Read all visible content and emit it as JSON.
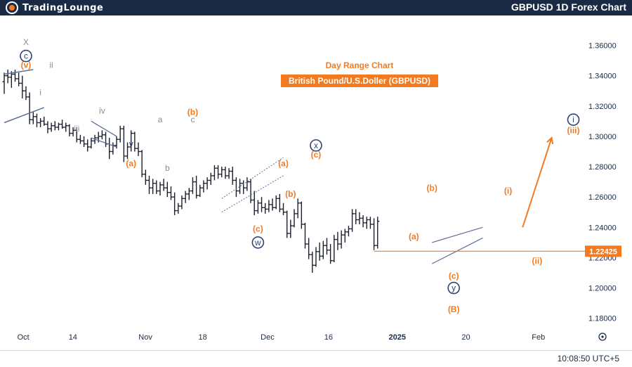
{
  "header": {
    "logo_text": "TradingLounge",
    "chart_title": "GBPUSD 1D Forex Chart"
  },
  "footer": {
    "time": "10:08:50 UTC+5"
  },
  "colors": {
    "bar": "#1b1f2b",
    "orange": "#f47a20",
    "gray": "#8c8c8c",
    "navy": "#2e4372",
    "axis_text": "#1b2a44",
    "price_tag": "#f47a20"
  },
  "chart_data": {
    "type": "ohlc",
    "title": "Day Range Chart",
    "subtitle": "British Pound/U.S.Doller (GBPUSD)",
    "ylim": [
      1.172,
      1.376
    ],
    "y_ticks": [
      "1.36000",
      "1.34000",
      "1.32000",
      "1.30000",
      "1.28000",
      "1.26000",
      "1.24000",
      "1.22000",
      "1.20000",
      "1.18000"
    ],
    "y_tick_values": [
      1.36,
      1.34,
      1.32,
      1.3,
      1.28,
      1.26,
      1.24,
      1.22,
      1.2,
      1.18
    ],
    "x_ticks": [
      "Oct",
      "14",
      "Nov",
      "18",
      "Dec",
      "16",
      "2025",
      "20",
      "Feb"
    ],
    "x_tick_days": [
      5,
      18,
      37,
      52,
      69,
      85,
      103,
      121,
      140
    ],
    "last_price": "1.22425",
    "last_price_value": 1.22425,
    "bars": [
      [
        0,
        1.336,
        1.342,
        1.328,
        1.34
      ],
      [
        1,
        1.34,
        1.344,
        1.335,
        1.339
      ],
      [
        2,
        1.339,
        1.343,
        1.332,
        1.341
      ],
      [
        3,
        1.341,
        1.344,
        1.336,
        1.338
      ],
      [
        4,
        1.338,
        1.342,
        1.333,
        1.335
      ],
      [
        5,
        1.335,
        1.34,
        1.325,
        1.33
      ],
      [
        6,
        1.33,
        1.333,
        1.324,
        1.326
      ],
      [
        7,
        1.326,
        1.329,
        1.308,
        1.311
      ],
      [
        8,
        1.311,
        1.316,
        1.308,
        1.313
      ],
      [
        9,
        1.313,
        1.315,
        1.306,
        1.309
      ],
      [
        10,
        1.309,
        1.312,
        1.306,
        1.31
      ],
      [
        11,
        1.31,
        1.313,
        1.307,
        1.308
      ],
      [
        12,
        1.308,
        1.31,
        1.302,
        1.305
      ],
      [
        13,
        1.305,
        1.309,
        1.303,
        1.307
      ],
      [
        14,
        1.307,
        1.31,
        1.304,
        1.306
      ],
      [
        15,
        1.306,
        1.309,
        1.304,
        1.308
      ],
      [
        16,
        1.308,
        1.311,
        1.305,
        1.306
      ],
      [
        17,
        1.306,
        1.309,
        1.303,
        1.307
      ],
      [
        18,
        1.307,
        1.308,
        1.3,
        1.302
      ],
      [
        19,
        1.302,
        1.306,
        1.3,
        1.304
      ],
      [
        20,
        1.304,
        1.306,
        1.296,
        1.298
      ],
      [
        21,
        1.298,
        1.301,
        1.295,
        1.297
      ],
      [
        22,
        1.297,
        1.3,
        1.293,
        1.295
      ],
      [
        23,
        1.295,
        1.298,
        1.29,
        1.293
      ],
      [
        24,
        1.293,
        1.299,
        1.292,
        1.297
      ],
      [
        25,
        1.297,
        1.301,
        1.295,
        1.299
      ],
      [
        26,
        1.299,
        1.303,
        1.296,
        1.3
      ],
      [
        27,
        1.3,
        1.304,
        1.298,
        1.301
      ],
      [
        28,
        1.301,
        1.303,
        1.293,
        1.295
      ],
      [
        29,
        1.295,
        1.299,
        1.285,
        1.29
      ],
      [
        30,
        1.29,
        1.296,
        1.288,
        1.294
      ],
      [
        31,
        1.294,
        1.3,
        1.292,
        1.298
      ],
      [
        32,
        1.298,
        1.307,
        1.296,
        1.305
      ],
      [
        33,
        1.305,
        1.307,
        1.283,
        1.287
      ],
      [
        34,
        1.287,
        1.296,
        1.285,
        1.293
      ],
      [
        35,
        1.293,
        1.304,
        1.29,
        1.302
      ],
      [
        36,
        1.302,
        1.303,
        1.29,
        1.292
      ],
      [
        37,
        1.292,
        1.296,
        1.287,
        1.29
      ],
      [
        38,
        1.29,
        1.291,
        1.273,
        1.275
      ],
      [
        39,
        1.275,
        1.278,
        1.268,
        1.271
      ],
      [
        40,
        1.271,
        1.274,
        1.262,
        1.266
      ],
      [
        41,
        1.266,
        1.272,
        1.262,
        1.269
      ],
      [
        42,
        1.269,
        1.271,
        1.262,
        1.264
      ],
      [
        43,
        1.264,
        1.27,
        1.261,
        1.268
      ],
      [
        44,
        1.268,
        1.272,
        1.264,
        1.266
      ],
      [
        45,
        1.266,
        1.27,
        1.26,
        1.263
      ],
      [
        46,
        1.263,
        1.267,
        1.258,
        1.26
      ],
      [
        47,
        1.26,
        1.263,
        1.248,
        1.251
      ],
      [
        48,
        1.251,
        1.256,
        1.249,
        1.254
      ],
      [
        49,
        1.254,
        1.261,
        1.252,
        1.259
      ],
      [
        50,
        1.259,
        1.264,
        1.256,
        1.262
      ],
      [
        51,
        1.262,
        1.266,
        1.258,
        1.264
      ],
      [
        52,
        1.264,
        1.273,
        1.262,
        1.27
      ],
      [
        53,
        1.27,
        1.274,
        1.259,
        1.261
      ],
      [
        54,
        1.261,
        1.268,
        1.26,
        1.266
      ],
      [
        55,
        1.266,
        1.271,
        1.263,
        1.269
      ],
      [
        56,
        1.269,
        1.273,
        1.265,
        1.271
      ],
      [
        57,
        1.271,
        1.276,
        1.268,
        1.274
      ],
      [
        58,
        1.274,
        1.281,
        1.271,
        1.279
      ],
      [
        59,
        1.279,
        1.281,
        1.272,
        1.275
      ],
      [
        60,
        1.275,
        1.28,
        1.273,
        1.278
      ],
      [
        61,
        1.278,
        1.28,
        1.272,
        1.274
      ],
      [
        62,
        1.274,
        1.279,
        1.272,
        1.277
      ],
      [
        63,
        1.277,
        1.28,
        1.268,
        1.271
      ],
      [
        64,
        1.271,
        1.273,
        1.26,
        1.264
      ],
      [
        65,
        1.264,
        1.272,
        1.262,
        1.269
      ],
      [
        66,
        1.269,
        1.271,
        1.262,
        1.266
      ],
      [
        67,
        1.266,
        1.273,
        1.264,
        1.27
      ],
      [
        68,
        1.27,
        1.272,
        1.256,
        1.258
      ],
      [
        69,
        1.258,
        1.264,
        1.248,
        1.251
      ],
      [
        70,
        1.251,
        1.258,
        1.249,
        1.256
      ],
      [
        71,
        1.256,
        1.26,
        1.25,
        1.253
      ],
      [
        72,
        1.253,
        1.256,
        1.249,
        1.252
      ],
      [
        73,
        1.252,
        1.258,
        1.25,
        1.255
      ],
      [
        74,
        1.255,
        1.259,
        1.251,
        1.253
      ],
      [
        75,
        1.253,
        1.261,
        1.252,
        1.259
      ],
      [
        76,
        1.259,
        1.262,
        1.25,
        1.252
      ],
      [
        77,
        1.252,
        1.256,
        1.248,
        1.25
      ],
      [
        78,
        1.25,
        1.251,
        1.233,
        1.236
      ],
      [
        79,
        1.236,
        1.245,
        1.233,
        1.241
      ],
      [
        80,
        1.241,
        1.252,
        1.24,
        1.249
      ],
      [
        81,
        1.249,
        1.259,
        1.246,
        1.256
      ],
      [
        82,
        1.256,
        1.257,
        1.239,
        1.242
      ],
      [
        83,
        1.242,
        1.243,
        1.226,
        1.229
      ],
      [
        84,
        1.229,
        1.233,
        1.219,
        1.222
      ],
      [
        85,
        1.222,
        1.224,
        1.21,
        1.215
      ],
      [
        86,
        1.215,
        1.227,
        1.214,
        1.224
      ],
      [
        87,
        1.224,
        1.23,
        1.218,
        1.221
      ],
      [
        88,
        1.221,
        1.231,
        1.219,
        1.228
      ],
      [
        89,
        1.228,
        1.233,
        1.222,
        1.225
      ],
      [
        90,
        1.225,
        1.229,
        1.216,
        1.218
      ],
      [
        91,
        1.218,
        1.235,
        1.217,
        1.232
      ],
      [
        92,
        1.232,
        1.237,
        1.225,
        1.229
      ],
      [
        93,
        1.229,
        1.238,
        1.226,
        1.235
      ],
      [
        94,
        1.235,
        1.239,
        1.23,
        1.237
      ],
      [
        95,
        1.237,
        1.241,
        1.234,
        1.239
      ],
      [
        96,
        1.239,
        1.252,
        1.237,
        1.249
      ],
      [
        97,
        1.249,
        1.252,
        1.242,
        1.245
      ],
      [
        98,
        1.245,
        1.25,
        1.242,
        1.246
      ],
      [
        99,
        1.246,
        1.248,
        1.24,
        1.243
      ],
      [
        100,
        1.243,
        1.247,
        1.239,
        1.245
      ],
      [
        101,
        1.245,
        1.247,
        1.239,
        1.242
      ],
      [
        102,
        1.242,
        1.246,
        1.225,
        1.228
      ],
      [
        103,
        1.228,
        1.247,
        1.226,
        1.244
      ]
    ],
    "wave_labels": [
      {
        "text": "X",
        "day": 6,
        "price": 1.362,
        "color": "gray"
      },
      {
        "text": "c",
        "day": 6,
        "price": 1.353,
        "color": "navy",
        "circle": true
      },
      {
        "text": "(v)",
        "day": 6,
        "price": 1.347,
        "color": "orange"
      },
      {
        "text": "ii",
        "day": 13,
        "price": 1.347,
        "color": "gray"
      },
      {
        "text": "i",
        "day": 10,
        "price": 1.329,
        "color": "gray"
      },
      {
        "text": "iii",
        "day": 20,
        "price": 1.305,
        "color": "gray"
      },
      {
        "text": "iv",
        "day": 27,
        "price": 1.317,
        "color": "gray"
      },
      {
        "text": "v",
        "day": 35,
        "price": 1.295,
        "color": "navy"
      },
      {
        "text": "(a)",
        "day": 35,
        "price": 1.282,
        "color": "orange"
      },
      {
        "text": "a",
        "day": 43,
        "price": 1.311,
        "color": "gray"
      },
      {
        "text": "b",
        "day": 45,
        "price": 1.279,
        "color": "gray"
      },
      {
        "text": "(b)",
        "day": 52,
        "price": 1.316,
        "color": "orange"
      },
      {
        "text": "c",
        "day": 52,
        "price": 1.311,
        "color": "gray"
      },
      {
        "text": "(a)",
        "day": 77,
        "price": 1.282,
        "color": "orange"
      },
      {
        "text": "(b)",
        "day": 79,
        "price": 1.262,
        "color": "orange"
      },
      {
        "text": "(c)",
        "day": 70,
        "price": 1.239,
        "color": "orange"
      },
      {
        "text": "w",
        "day": 70,
        "price": 1.23,
        "color": "navy",
        "circle": true
      },
      {
        "text": "x",
        "day": 86,
        "price": 1.294,
        "color": "navy",
        "circle": true
      },
      {
        "text": "(c)",
        "day": 86,
        "price": 1.288,
        "color": "orange"
      },
      {
        "text": "(b)",
        "day": 118,
        "price": 1.266,
        "color": "orange"
      },
      {
        "text": "(a)",
        "day": 113,
        "price": 1.234,
        "color": "orange"
      },
      {
        "text": "(c)",
        "day": 124,
        "price": 1.208,
        "color": "orange"
      },
      {
        "text": "y",
        "day": 124,
        "price": 1.2,
        "color": "navy",
        "circle": true
      },
      {
        "text": "(B)",
        "day": 124,
        "price": 1.186,
        "color": "orange"
      },
      {
        "text": "(i)",
        "day": 139,
        "price": 1.264,
        "color": "orange"
      },
      {
        "text": "(ii)",
        "day": 147,
        "price": 1.218,
        "color": "orange"
      },
      {
        "text": "i",
        "day": 157,
        "price": 1.311,
        "color": "navy",
        "circle": true
      },
      {
        "text": "(iii)",
        "day": 157,
        "price": 1.304,
        "color": "orange"
      }
    ]
  }
}
